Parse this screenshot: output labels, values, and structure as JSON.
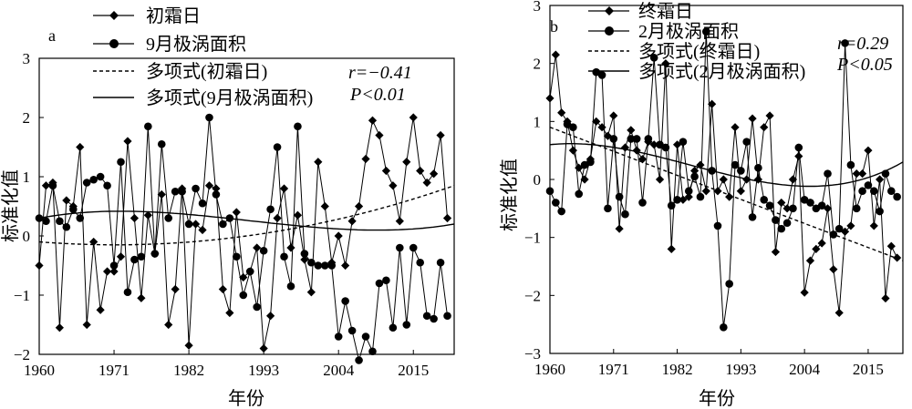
{
  "chart_data": [
    {
      "type": "line",
      "panel_label": "a",
      "xlabel": "年份",
      "ylabel": "标准化值",
      "xlim": [
        1960,
        2021
      ],
      "ylim": [
        -2,
        3
      ],
      "xticks": [
        "1960",
        "1971",
        "1982",
        "1993",
        "2004",
        "2015"
      ],
      "yticks": [
        "-2",
        "-1",
        "0",
        "1",
        "2",
        "3"
      ],
      "annotation": {
        "r": "r=−0.41",
        "p": "P<0.01"
      },
      "series": [
        {
          "name": "初霜日",
          "marker": "diamond",
          "x": [
            1960,
            1961,
            1962,
            1963,
            1964,
            1965,
            1966,
            1967,
            1968,
            1969,
            1970,
            1971,
            1972,
            1973,
            1974,
            1975,
            1976,
            1977,
            1978,
            1979,
            1980,
            1981,
            1982,
            1983,
            1984,
            1985,
            1986,
            1987,
            1988,
            1989,
            1990,
            1991,
            1992,
            1993,
            1994,
            1995,
            1996,
            1997,
            1998,
            1999,
            2000,
            2001,
            2002,
            2003,
            2004,
            2005,
            2006,
            2007,
            2008,
            2009,
            2010,
            2011,
            2012,
            2013,
            2014,
            2015,
            2016,
            2017,
            2018,
            2019,
            2020
          ],
          "values": [
            -0.5,
            0.85,
            0.9,
            -1.55,
            0.6,
            0.5,
            1.5,
            -1.5,
            -0.1,
            -1.25,
            -0.6,
            -0.6,
            -0.35,
            1.6,
            0.3,
            -1.05,
            0.35,
            -0.3,
            0.7,
            -1.5,
            -0.9,
            0.8,
            -1.85,
            0.2,
            0.1,
            0.85,
            0.8,
            -0.9,
            -1.3,
            0.4,
            -0.7,
            -0.6,
            -0.2,
            -1.9,
            -1.35,
            0.3,
            0.8,
            -0.2,
            0.35,
            -0.4,
            -0.95,
            1.25,
            0.5,
            -0.45,
            0.0,
            -0.5,
            0.25,
            0.5,
            1.3,
            1.95,
            1.7,
            1.1,
            0.85,
            0.25,
            1.25,
            2.0,
            1.1,
            0.9,
            1.05,
            1.7,
            0.3
          ]
        },
        {
          "name": "9月极涡面积",
          "marker": "circle",
          "x": [
            1960,
            1961,
            1962,
            1963,
            1964,
            1965,
            1966,
            1967,
            1968,
            1969,
            1970,
            1971,
            1972,
            1973,
            1974,
            1975,
            1976,
            1977,
            1978,
            1979,
            1980,
            1981,
            1982,
            1983,
            1984,
            1985,
            1986,
            1987,
            1988,
            1989,
            1990,
            1991,
            1992,
            1993,
            1994,
            1995,
            1996,
            1997,
            1998,
            1999,
            2000,
            2001,
            2002,
            2003,
            2004,
            2005,
            2006,
            2007,
            2008,
            2009,
            2010,
            2011,
            2012,
            2013,
            2014,
            2015,
            2016,
            2017,
            2018,
            2019,
            2020
          ],
          "values": [
            0.3,
            0.25,
            0.85,
            0.25,
            0.15,
            0.45,
            0.3,
            0.9,
            0.95,
            1.0,
            0.85,
            -0.5,
            1.25,
            -0.95,
            -0.4,
            -0.35,
            1.85,
            -0.3,
            1.55,
            0.3,
            0.75,
            0.75,
            0.2,
            0.8,
            0.55,
            2.0,
            0.7,
            0.2,
            0.3,
            -0.35,
            -1.0,
            -0.6,
            -1.2,
            -0.25,
            0.45,
            1.5,
            -0.35,
            -0.85,
            1.85,
            -0.3,
            -0.45,
            -0.5,
            -0.5,
            -0.5,
            -1.7,
            -1.1,
            -1.6,
            -2.1,
            -1.7,
            -1.95,
            -0.8,
            -0.75,
            -1.55,
            -0.2,
            -1.5,
            -0.2,
            -0.45,
            -1.35,
            -1.4,
            -0.45,
            -1.35
          ]
        },
        {
          "name": "多项式(初霜日)",
          "style": "dashed",
          "coef": [
            -0.1,
            -0.55,
            1.5
          ]
        },
        {
          "name": "多项式(9月极涡面积)",
          "style": "solid",
          "coef": [
            0.3,
            1.3,
            -4.1,
            2.7
          ]
        }
      ]
    },
    {
      "type": "line",
      "panel_label": "b",
      "xlabel": "年份",
      "ylabel": "标准化值",
      "xlim": [
        1960,
        2021
      ],
      "ylim": [
        -3,
        3
      ],
      "xticks": [
        "1960",
        "1971",
        "1982",
        "1993",
        "2004",
        "2015"
      ],
      "yticks": [
        "-3",
        "-2",
        "-1",
        "0",
        "1",
        "2",
        "3"
      ],
      "annotation": {
        "r": "r=0.29",
        "p": "P<0.05"
      },
      "series": [
        {
          "name": "终霜日",
          "marker": "diamond",
          "x": [
            1960,
            1961,
            1962,
            1963,
            1964,
            1965,
            1966,
            1967,
            1968,
            1969,
            1970,
            1971,
            1972,
            1973,
            1974,
            1975,
            1976,
            1977,
            1978,
            1979,
            1980,
            1981,
            1982,
            1983,
            1984,
            1985,
            1986,
            1987,
            1988,
            1989,
            1990,
            1991,
            1992,
            1993,
            1994,
            1995,
            1996,
            1997,
            1998,
            1999,
            2000,
            2001,
            2002,
            2003,
            2004,
            2005,
            2006,
            2007,
            2008,
            2009,
            2010,
            2011,
            2012,
            2013,
            2014,
            2015,
            2016,
            2017,
            2018,
            2019,
            2020
          ],
          "values": [
            1.4,
            2.15,
            1.15,
            1.0,
            0.5,
            0.2,
            0.0,
            0.35,
            1.0,
            0.9,
            0.75,
            1.1,
            -0.85,
            0.55,
            0.85,
            0.5,
            0.35,
            0.65,
            0.6,
            0.0,
            2.0,
            -1.2,
            0.6,
            -0.35,
            -0.3,
            0.15,
            0.25,
            -0.2,
            1.3,
            -0.2,
            0.0,
            -0.3,
            0.9,
            -0.2,
            0.0,
            1.05,
            0.0,
            0.9,
            1.1,
            -1.25,
            -0.4,
            -0.5,
            0.0,
            0.4,
            -1.95,
            -1.4,
            -1.2,
            -1.1,
            -0.5,
            -1.55,
            -2.3,
            -0.9,
            -0.8,
            0.1,
            0.1,
            0.5,
            -0.8,
            0.0,
            -2.05,
            -1.15,
            -1.35
          ]
        },
        {
          "name": "2月极涡面积",
          "marker": "circle",
          "x": [
            1960,
            1961,
            1962,
            1963,
            1964,
            1965,
            1966,
            1967,
            1968,
            1969,
            1970,
            1971,
            1972,
            1973,
            1974,
            1975,
            1976,
            1977,
            1978,
            1979,
            1980,
            1981,
            1982,
            1983,
            1984,
            1985,
            1986,
            1987,
            1988,
            1989,
            1990,
            1991,
            1992,
            1993,
            1994,
            1995,
            1996,
            1997,
            1998,
            1999,
            2000,
            2001,
            2002,
            2003,
            2004,
            2005,
            2006,
            2007,
            2008,
            2009,
            2010,
            2011,
            2012,
            2013,
            2014,
            2015,
            2016,
            2017,
            2018,
            2019,
            2020
          ],
          "values": [
            -0.2,
            -0.4,
            -0.55,
            0.95,
            0.9,
            -0.25,
            0.25,
            0.3,
            1.85,
            1.8,
            -0.5,
            0.7,
            -0.3,
            -0.6,
            0.7,
            0.7,
            -0.4,
            0.7,
            2.1,
            0.6,
            0.55,
            -0.45,
            -0.35,
            0.65,
            -0.2,
            0.05,
            -0.3,
            2.55,
            0.15,
            -0.8,
            -2.55,
            -1.8,
            0.25,
            0.15,
            0.65,
            -0.65,
            0.2,
            -0.35,
            -0.45,
            -0.7,
            -0.85,
            -0.75,
            -0.5,
            0.55,
            -0.35,
            -0.4,
            -0.5,
            -0.45,
            0.1,
            -0.95,
            -0.85,
            2.35,
            0.25,
            -0.5,
            -0.2,
            -0.1,
            -0.2,
            -0.55,
            0.1,
            -0.2,
            -0.3
          ]
        },
        {
          "name": "多项式(终霜日)",
          "style": "dashed",
          "coef": [
            0.9,
            -2.3
          ]
        },
        {
          "name": "多项式(2月极涡面积)",
          "style": "solid",
          "coef": [
            0.6,
            0.6,
            -5.6,
            4.7
          ]
        }
      ]
    }
  ]
}
